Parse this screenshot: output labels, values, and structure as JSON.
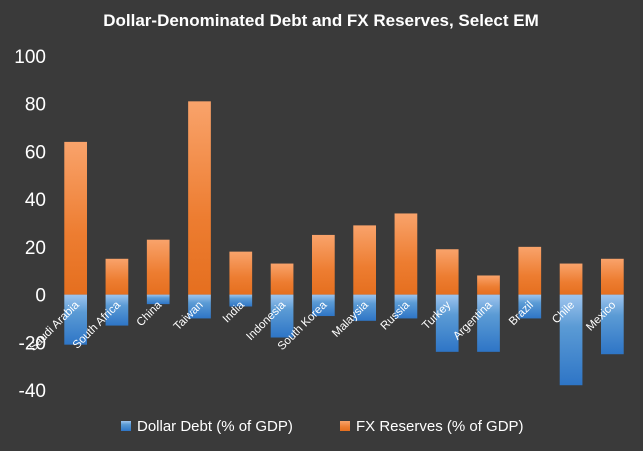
{
  "chart_data": {
    "type": "bar",
    "title": "Dollar-Denominated  Debt and  FX Reserves, Select EM",
    "xlabel": "",
    "ylabel": "",
    "ylim": [
      -40,
      100
    ],
    "yticks": [
      100,
      80,
      60,
      40,
      20,
      0,
      -20,
      -40
    ],
    "grid": false,
    "legend_position": "bottom",
    "categories": [
      "Saudi Arabia",
      "South Africa",
      "China",
      "Taiwan",
      "India",
      "Indonesia",
      "South Korea",
      "Malaysia",
      "Russia",
      "Turkey",
      "Argentina",
      "Brazil",
      "Chile",
      "Mexico"
    ],
    "series": [
      {
        "name": "Dollar Debt (% of GDP)",
        "color": "#5b9bd5",
        "values": [
          -21,
          -13,
          -4,
          -10,
          -5,
          -18,
          -9,
          -11,
          -10,
          -24,
          -24,
          -10,
          -38,
          -25
        ]
      },
      {
        "name": "FX Reserves (% of GDP)",
        "color": "#ed7d31",
        "values": [
          64,
          15,
          23,
          81,
          18,
          13,
          25,
          29,
          34,
          19,
          8,
          20,
          13,
          15
        ]
      }
    ]
  }
}
